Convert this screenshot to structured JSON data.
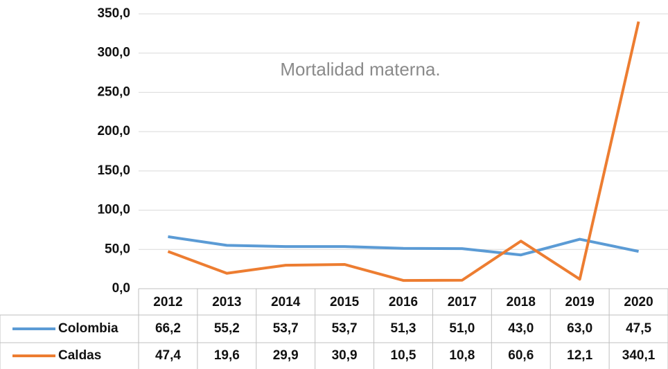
{
  "chart_data": {
    "type": "line",
    "title": "Mortalidad materna.",
    "categories": [
      "2012",
      "2013",
      "2014",
      "2015",
      "2016",
      "2017",
      "2018",
      "2019",
      "2020"
    ],
    "series": [
      {
        "name": "Colombia",
        "color": "#5b9bd5",
        "values": [
          66.2,
          55.2,
          53.7,
          53.7,
          51.3,
          51.0,
          43.0,
          63.0,
          47.5
        ],
        "value_labels": [
          "66,2",
          "55,2",
          "53,7",
          "53,7",
          "51,3",
          "51,0",
          "43,0",
          "63,0",
          "47,5"
        ]
      },
      {
        "name": "Caldas",
        "color": "#ed7d31",
        "values": [
          47.4,
          19.6,
          29.9,
          30.9,
          10.5,
          10.8,
          60.6,
          12.1,
          340.1
        ],
        "value_labels": [
          "47,4",
          "19,6",
          "29,9",
          "30,9",
          "10,5",
          "10,8",
          "60,6",
          "12,1",
          "340,1"
        ]
      }
    ],
    "ylim": [
      0,
      350
    ],
    "yticks": [
      {
        "value": 0,
        "label": "0,0"
      },
      {
        "value": 50,
        "label": "50,0"
      },
      {
        "value": 100,
        "label": "100,0"
      },
      {
        "value": 150,
        "label": "150,0"
      },
      {
        "value": 200,
        "label": "200,0"
      },
      {
        "value": 250,
        "label": "250,0"
      },
      {
        "value": 300,
        "label": "300,0"
      },
      {
        "value": 350,
        "label": "350,0"
      }
    ],
    "grid": true
  }
}
